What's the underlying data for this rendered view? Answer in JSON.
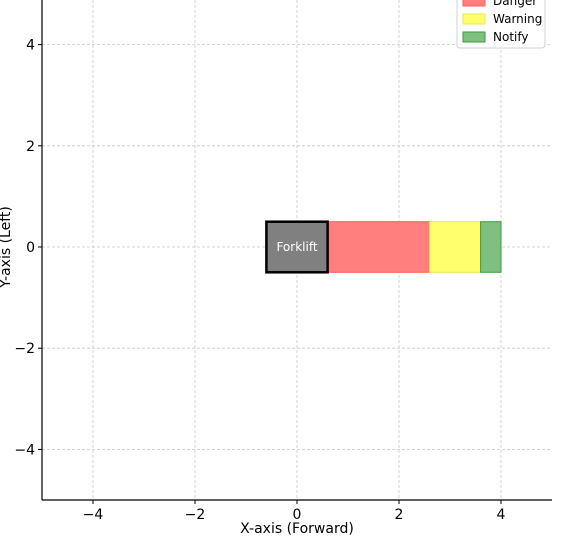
{
  "chart_data": {
    "type": "bar",
    "title": "",
    "xlabel": "X-axis (Forward)",
    "ylabel": "Y-axis (Left)",
    "xlim": [
      -5,
      5
    ],
    "ylim": [
      -5,
      5
    ],
    "xticks": [
      -4,
      -2,
      0,
      2,
      4
    ],
    "yticks": [
      -4,
      -2,
      0,
      2,
      4
    ],
    "xtick_labels": [
      "−4",
      "−2",
      "0",
      "2",
      "4"
    ],
    "ytick_labels": [
      "−4",
      "−2",
      "0",
      "2",
      "4"
    ],
    "grid": true,
    "legend_placement": "top-right",
    "forklift": {
      "label": "Forklift",
      "x": [
        -0.6,
        0.6
      ],
      "y": [
        -0.5,
        0.5
      ],
      "fill": "#808080",
      "edge": "#000000"
    },
    "zones": [
      {
        "name": "Danger",
        "x": [
          0.6,
          2.6
        ],
        "y": [
          -0.5,
          0.5
        ],
        "color": "#ff7f7f",
        "edge": "#ff5a5a"
      },
      {
        "name": "Warning",
        "x": [
          2.6,
          3.6
        ],
        "y": [
          -0.5,
          0.5
        ],
        "color": "#ffff6e",
        "edge": "#e8e84a"
      },
      {
        "name": "Notify",
        "x": [
          3.6,
          4.0
        ],
        "y": [
          -0.5,
          0.5
        ],
        "color": "#7fbf7f",
        "edge": "#3e9a3e"
      }
    ]
  }
}
